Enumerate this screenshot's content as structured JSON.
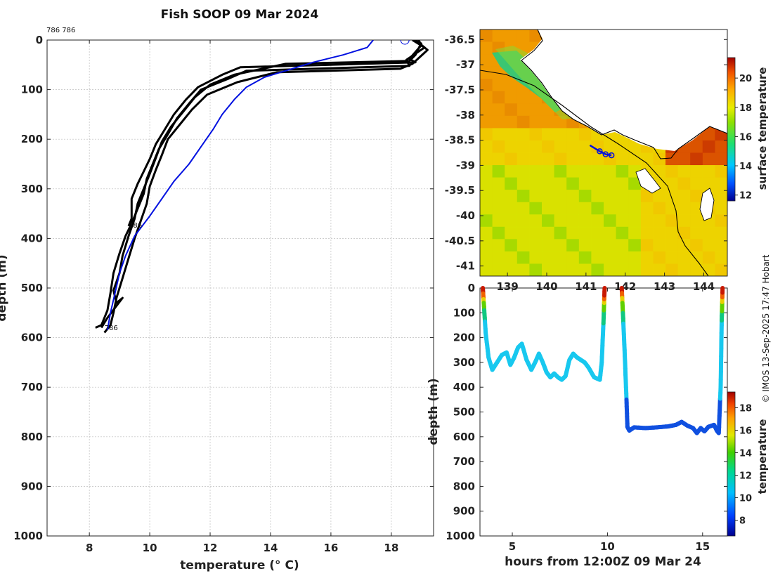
{
  "title": "Fish SOOP 09 Mar 2024",
  "credit": "© IMOS 13-Sep-2025 17:47 Hobart",
  "colors": {
    "observed": "#000000",
    "climatology": "#0010e0",
    "land": "#ffffff",
    "coast": "#000000"
  },
  "chart_data": [
    {
      "type": "line",
      "name": "temperature-depth-profile",
      "xlabel": "temperature (° C)",
      "ylabel": "depth (m)",
      "xlim": [
        6.6,
        19.4
      ],
      "ylim": [
        0,
        1000
      ],
      "y_reversed": true,
      "grid": true,
      "x_ticks": [
        8,
        10,
        12,
        14,
        16,
        18
      ],
      "y_ticks": [
        0,
        100,
        200,
        300,
        400,
        500,
        600,
        700,
        800,
        900,
        1000
      ],
      "top_label": "786 786",
      "annotations": [
        {
          "text": "786",
          "temp": 9.3,
          "depth": 378
        },
        {
          "text": "786",
          "temp": 8.5,
          "depth": 585
        }
      ],
      "surface_marker": {
        "temp": 18.45,
        "depth": 0
      },
      "series": [
        {
          "name": "observed profile",
          "color": "#000000",
          "points": [
            [
              18.9,
              0
            ],
            [
              19.0,
              10
            ],
            [
              18.6,
              38
            ],
            [
              18.8,
              45
            ],
            [
              13.0,
              55
            ],
            [
              12.4,
              70
            ],
            [
              11.6,
              95
            ],
            [
              11.2,
              120
            ],
            [
              10.8,
              150
            ],
            [
              10.5,
              180
            ],
            [
              10.2,
              210
            ],
            [
              10.0,
              240
            ],
            [
              9.8,
              265
            ],
            [
              9.6,
              290
            ],
            [
              9.4,
              320
            ],
            [
              9.4,
              360
            ],
            [
              9.3,
              375
            ]
          ]
        },
        {
          "name": "observed profile",
          "color": "#000000",
          "points": [
            [
              18.7,
              0
            ],
            [
              19.1,
              15
            ],
            [
              18.5,
              40
            ],
            [
              18.6,
              52
            ],
            [
              13.2,
              62
            ],
            [
              12.6,
              78
            ],
            [
              11.7,
              100
            ],
            [
              11.3,
              128
            ],
            [
              10.9,
              158
            ],
            [
              10.6,
              190
            ],
            [
              10.3,
              220
            ],
            [
              10.1,
              250
            ],
            [
              9.9,
              280
            ],
            [
              9.8,
              310
            ],
            [
              9.6,
              340
            ],
            [
              9.4,
              370
            ],
            [
              9.2,
              395
            ],
            [
              9.0,
              430
            ],
            [
              8.8,
              470
            ],
            [
              8.7,
              510
            ],
            [
              8.6,
              545
            ],
            [
              8.4,
              575
            ],
            [
              8.2,
              580
            ]
          ]
        },
        {
          "name": "observed profile",
          "color": "#000000",
          "points": [
            [
              18.8,
              0
            ],
            [
              19.2,
              20
            ],
            [
              18.7,
              48
            ],
            [
              18.3,
              58
            ],
            [
              14.2,
              65
            ],
            [
              12.9,
              85
            ],
            [
              11.9,
              110
            ],
            [
              11.4,
              140
            ],
            [
              11.0,
              170
            ],
            [
              10.6,
              200
            ],
            [
              10.4,
              232
            ],
            [
              10.2,
              262
            ],
            [
              10.0,
              295
            ],
            [
              9.9,
              330
            ],
            [
              9.7,
              365
            ],
            [
              9.5,
              400
            ],
            [
              9.3,
              440
            ],
            [
              9.1,
              480
            ],
            [
              8.9,
              520
            ],
            [
              8.8,
              550
            ],
            [
              8.7,
              575
            ],
            [
              8.5,
              590
            ]
          ]
        },
        {
          "name": "observed profile",
          "color": "#000000",
          "points": [
            [
              19.0,
              5
            ],
            [
              18.8,
              30
            ],
            [
              18.6,
              42
            ],
            [
              14.5,
              48
            ],
            [
              12.8,
              70
            ],
            [
              12.0,
              90
            ],
            [
              11.5,
              115
            ],
            [
              11.1,
              145
            ],
            [
              10.7,
              175
            ],
            [
              10.4,
              205
            ],
            [
              10.2,
              238
            ],
            [
              10.0,
              270
            ],
            [
              9.8,
              300
            ],
            [
              9.6,
              330
            ],
            [
              9.5,
              360
            ],
            [
              9.3,
              395
            ],
            [
              9.1,
              435
            ],
            [
              9.0,
              470
            ],
            [
              8.8,
              505
            ],
            [
              8.9,
              530
            ],
            [
              9.1,
              520
            ],
            [
              8.6,
              560
            ],
            [
              8.4,
              580
            ]
          ]
        },
        {
          "name": "climatology",
          "color": "#0010e0",
          "points": [
            [
              17.4,
              0
            ],
            [
              17.2,
              15
            ],
            [
              16.4,
              30
            ],
            [
              15.4,
              45
            ],
            [
              14.6,
              60
            ],
            [
              13.8,
              75
            ],
            [
              13.2,
              95
            ],
            [
              12.8,
              120
            ],
            [
              12.4,
              150
            ],
            [
              12.1,
              180
            ],
            [
              11.7,
              215
            ],
            [
              11.3,
              250
            ],
            [
              10.8,
              285
            ],
            [
              10.4,
              320
            ],
            [
              10.0,
              355
            ],
            [
              9.5,
              395
            ],
            [
              9.2,
              435
            ],
            [
              9.0,
              470
            ],
            [
              8.85,
              510
            ],
            [
              8.7,
              550
            ],
            [
              8.6,
              585
            ]
          ]
        }
      ]
    },
    {
      "type": "heatmap",
      "name": "surface-temperature-map",
      "colorbar_label": "surface temperature",
      "colorbar_range": [
        11.6,
        21.4
      ],
      "colorbar_ticks": [
        12,
        14,
        16,
        18,
        20
      ],
      "lon_range": [
        138.3,
        144.6
      ],
      "lat_range": [
        -41.2,
        -36.3
      ],
      "lon_ticks": [
        "139",
        "140",
        "141",
        "142",
        "143",
        "144"
      ],
      "lat_ticks": [
        "-36.5",
        "-37",
        "-37.5",
        "-38",
        "-38.5",
        "-39",
        "-39.5",
        "-40",
        "-40.5",
        "-41"
      ],
      "track": [
        [
          141.1,
          -38.6
        ],
        [
          141.35,
          -38.72
        ],
        [
          141.5,
          -38.78
        ],
        [
          141.65,
          -38.8
        ]
      ]
    },
    {
      "type": "scatter",
      "name": "depth-time-trace",
      "xlabel": "hours from 12:00Z 09 Mar 24",
      "ylabel": "depth (m)",
      "xlim": [
        3.3,
        16.3
      ],
      "ylim": [
        0,
        1000
      ],
      "y_reversed": true,
      "x_ticks": [
        5,
        10,
        15
      ],
      "y_ticks": [
        0,
        100,
        200,
        300,
        400,
        500,
        600,
        700,
        800,
        900,
        1000
      ],
      "colorbar_label": "temperature",
      "colorbar_range": [
        6.6,
        19.4
      ],
      "colorbar_ticks": [
        8,
        10,
        12,
        14,
        16,
        18
      ],
      "segments": [
        [
          [
            3.45,
            0
          ],
          [
            3.5,
            60
          ],
          [
            3.6,
            180
          ],
          [
            3.75,
            280
          ],
          [
            3.95,
            330
          ],
          [
            4.2,
            300
          ],
          [
            4.45,
            270
          ],
          [
            4.7,
            260
          ],
          [
            4.9,
            310
          ],
          [
            5.1,
            280
          ],
          [
            5.3,
            240
          ],
          [
            5.5,
            225
          ],
          [
            5.75,
            290
          ],
          [
            6.0,
            330
          ],
          [
            6.2,
            300
          ],
          [
            6.4,
            265
          ],
          [
            6.6,
            300
          ],
          [
            6.8,
            340
          ],
          [
            7.0,
            360
          ],
          [
            7.2,
            345
          ],
          [
            7.4,
            360
          ],
          [
            7.6,
            370
          ],
          [
            7.8,
            355
          ],
          [
            8.0,
            290
          ],
          [
            8.2,
            265
          ],
          [
            8.4,
            280
          ],
          [
            8.6,
            290
          ],
          [
            8.8,
            300
          ],
          [
            9.0,
            320
          ],
          [
            9.3,
            360
          ],
          [
            9.6,
            370
          ],
          [
            9.7,
            300
          ],
          [
            9.8,
            120
          ],
          [
            9.85,
            0
          ]
        ],
        [
          [
            10.75,
            0
          ],
          [
            10.8,
            80
          ],
          [
            10.9,
            250
          ],
          [
            11.0,
            450
          ],
          [
            11.05,
            560
          ],
          [
            11.15,
            575
          ],
          [
            11.4,
            562
          ],
          [
            12.0,
            565
          ],
          [
            12.6,
            562
          ],
          [
            13.2,
            558
          ],
          [
            13.6,
            552
          ],
          [
            13.9,
            540
          ],
          [
            14.2,
            555
          ],
          [
            14.5,
            565
          ],
          [
            14.7,
            585
          ],
          [
            14.9,
            565
          ],
          [
            15.1,
            578
          ],
          [
            15.3,
            560
          ],
          [
            15.6,
            552
          ],
          [
            15.75,
            575
          ],
          [
            15.85,
            585
          ],
          [
            15.95,
            400
          ],
          [
            16.0,
            150
          ],
          [
            16.05,
            0
          ]
        ]
      ]
    }
  ]
}
